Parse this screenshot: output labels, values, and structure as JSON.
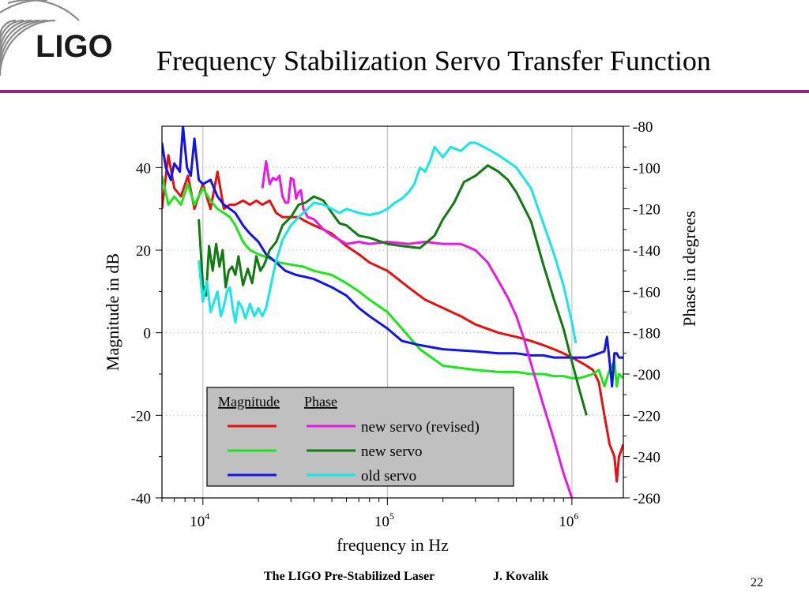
{
  "slide": {
    "title": "Frequency Stabilization Servo Transfer Function",
    "logo_text": "LIGO",
    "footer_text": "The LIGO Pre-Stabilized Laser",
    "footer_author": "J. Kovalik",
    "page_number": "22",
    "accent_color": "#9b1f74"
  },
  "chart_data": {
    "type": "line",
    "title": "",
    "xlabel": "frequency in Hz",
    "ylabel_left": "Magnitude in dB",
    "ylabel_right": "Phase in degrees",
    "x_scale": "log",
    "xlim": [
      6000,
      1900000
    ],
    "ylim_left": [
      -40,
      50
    ],
    "ylim_right": [
      -260,
      -80
    ],
    "x_ticks": [
      {
        "value": 10000,
        "base": "10",
        "exp": "4"
      },
      {
        "value": 100000,
        "base": "10",
        "exp": "5"
      },
      {
        "value": 1000000,
        "base": "10",
        "exp": "6"
      }
    ],
    "y_left_ticks": [
      "40",
      "20",
      "0",
      "-20",
      "-40"
    ],
    "y_right_ticks": [
      "-80",
      "-100",
      "-120",
      "-140",
      "-160",
      "-180",
      "-200",
      "-220",
      "-240",
      "-260"
    ],
    "grid": true,
    "legend": {
      "placement": "bottom-center",
      "header_magnitude": "Magnitude",
      "header_phase": "Phase",
      "entries": [
        "new servo (revised)",
        "new servo",
        "old servo"
      ]
    },
    "series": [
      {
        "name": "new servo (revised)",
        "quantity": "Magnitude",
        "axis": "left",
        "color": "#e61010",
        "x": [
          6000,
          6500,
          7000,
          7600,
          8300,
          9000,
          10000,
          11000,
          12000,
          13000,
          14000,
          15000,
          16500,
          18000,
          19500,
          21000,
          23000,
          25000,
          27000,
          30000,
          33000,
          36000,
          40000,
          45000,
          50000,
          60000,
          70000,
          80000,
          100000,
          130000,
          160000,
          200000,
          250000,
          300000,
          400000,
          500000,
          600000,
          700000,
          800000,
          900000,
          1000000,
          1100000,
          1200000,
          1300000,
          1400000,
          1500000,
          1600000,
          1700000,
          1750000,
          1800000,
          1900000
        ],
        "y": [
          30,
          43,
          35,
          33,
          38,
          30,
          36,
          30,
          39,
          30,
          31,
          31,
          32,
          31,
          32,
          31,
          32,
          29,
          28,
          28,
          28,
          27,
          26,
          25,
          24,
          21,
          19,
          17,
          15,
          11,
          8,
          6,
          4,
          2,
          0,
          -1,
          -2,
          -3,
          -4,
          -5,
          -6,
          -7,
          -8,
          -9,
          -12,
          -20,
          -27,
          -30,
          -36,
          -30,
          -27
        ]
      },
      {
        "name": "new servo",
        "quantity": "Magnitude",
        "axis": "left",
        "color": "#1ee61e",
        "x": [
          6000,
          6500,
          7000,
          7600,
          8300,
          9000,
          10000,
          11000,
          12000,
          13000,
          14000,
          15000,
          16500,
          18000,
          20000,
          23000,
          26000,
          30000,
          35000,
          40000,
          50000,
          60000,
          70000,
          80000,
          100000,
          120000,
          150000,
          200000,
          300000,
          400000,
          500000,
          600000,
          700000,
          800000,
          900000,
          1000000,
          1100000,
          1200000,
          1300000,
          1400000,
          1500000,
          1600000,
          1700000,
          1750000,
          1800000,
          1900000
        ],
        "y": [
          38,
          31,
          33,
          31,
          36,
          31,
          35,
          32,
          30,
          29,
          28,
          26,
          22,
          20,
          19,
          18,
          17,
          16.5,
          16,
          15,
          14,
          12,
          10,
          8,
          5,
          1,
          -4,
          -8,
          -9,
          -9.5,
          -9.5,
          -10,
          -10,
          -10.5,
          -10.5,
          -11,
          -11,
          -10.5,
          -10,
          -9,
          -13,
          -9,
          -7,
          -13,
          -10,
          -11
        ]
      },
      {
        "name": "old servo",
        "quantity": "Magnitude",
        "axis": "left",
        "color": "#1414e6",
        "x": [
          6000,
          6300,
          6700,
          7000,
          7500,
          7800,
          8200,
          8600,
          9000,
          9500,
          10000,
          11000,
          12000,
          13000,
          14000,
          15000,
          16500,
          18000,
          20000,
          22000,
          25000,
          28000,
          32000,
          36000,
          40000,
          50000,
          60000,
          70000,
          80000,
          100000,
          120000,
          150000,
          200000,
          300000,
          400000,
          500000,
          600000,
          700000,
          800000,
          900000,
          1000000,
          1100000,
          1200000,
          1300000,
          1400000,
          1500000,
          1550000,
          1600000,
          1650000,
          1700000,
          1750000,
          1800000,
          1900000
        ],
        "y": [
          46,
          40,
          37,
          41,
          39,
          50,
          40,
          38,
          47,
          37,
          36,
          37,
          33,
          31,
          30,
          29,
          26,
          24,
          22,
          19,
          17,
          15,
          14,
          13.5,
          13,
          11,
          9,
          6,
          4,
          1,
          -2,
          -3,
          -4,
          -4.5,
          -5,
          -5,
          -5.5,
          -5.5,
          -6,
          -6,
          -6,
          -6,
          -6,
          -5.5,
          -5,
          -4.5,
          -1,
          -7,
          -13,
          -5,
          -5,
          -6,
          -6
        ]
      },
      {
        "name": "new servo (revised)",
        "quantity": "Phase",
        "axis": "right",
        "color": "#e619e6",
        "x": [
          21000,
          22000,
          23000,
          24000,
          25000,
          26000,
          27000,
          28000,
          29000,
          30000,
          31000,
          32000,
          33000,
          34000,
          35000,
          37000,
          40000,
          45000,
          50000,
          55000,
          60000,
          70000,
          80000,
          100000,
          130000,
          160000,
          200000,
          250000,
          300000,
          350000,
          400000,
          450000,
          500000,
          550000,
          600000,
          700000,
          800000,
          900000,
          1000000,
          1050000
        ],
        "y": [
          -110,
          -97,
          -108,
          -105,
          -106,
          -104,
          -114,
          -117,
          -117,
          -105,
          -106,
          -115,
          -112,
          -111,
          -120,
          -124,
          -125,
          -130,
          -133,
          -135,
          -137,
          -136,
          -137,
          -136,
          -137,
          -136,
          -137,
          -137,
          -140,
          -146,
          -155,
          -163,
          -172,
          -183,
          -195,
          -215,
          -232,
          -248,
          -260,
          -268
        ]
      },
      {
        "name": "new servo",
        "quantity": "Phase",
        "axis": "right",
        "color": "#117a11",
        "x": [
          9500,
          10000,
          10400,
          10800,
          11300,
          11800,
          12300,
          12800,
          13300,
          13800,
          14400,
          15000,
          15600,
          16500,
          17500,
          18500,
          19500,
          20500,
          21500,
          23000,
          25000,
          27000,
          30000,
          33000,
          36000,
          40000,
          45000,
          50000,
          55000,
          60000,
          70000,
          80000,
          100000,
          120000,
          150000,
          180000,
          200000,
          230000,
          260000,
          300000,
          350000,
          400000,
          450000,
          500000,
          600000,
          700000,
          800000,
          900000,
          1000000,
          1100000,
          1200000
        ],
        "y": [
          -125,
          -157,
          -162,
          -138,
          -150,
          -137,
          -148,
          -140,
          -158,
          -150,
          -148,
          -152,
          -143,
          -157,
          -149,
          -156,
          -143,
          -150,
          -147,
          -140,
          -136,
          -128,
          -124,
          -118,
          -117,
          -114,
          -116,
          -122,
          -127,
          -128,
          -133,
          -134,
          -137,
          -138,
          -139,
          -133,
          -125,
          -117,
          -107,
          -104,
          -99,
          -102,
          -106,
          -112,
          -126,
          -147,
          -164,
          -178,
          -194,
          -208,
          -220
        ]
      },
      {
        "name": "old servo",
        "quantity": "Phase",
        "axis": "right",
        "color": "#19e6e6",
        "x": [
          9500,
          10000,
          10500,
          11000,
          11500,
          12000,
          12500,
          13000,
          13500,
          14000,
          14500,
          15000,
          15600,
          16300,
          17000,
          18000,
          19000,
          20000,
          21000,
          22000,
          23000,
          24000,
          25000,
          27000,
          30000,
          33000,
          36000,
          40000,
          45000,
          50000,
          55000,
          60000,
          70000,
          80000,
          90000,
          100000,
          110000,
          120000,
          130000,
          140000,
          150000,
          160000,
          170000,
          180000,
          200000,
          220000,
          250000,
          280000,
          300000,
          350000,
          400000,
          500000,
          600000,
          700000,
          800000,
          900000,
          1000000,
          1050000
        ],
        "y": [
          -145,
          -165,
          -155,
          -170,
          -165,
          -160,
          -172,
          -167,
          -160,
          -158,
          -168,
          -175,
          -165,
          -168,
          -173,
          -166,
          -172,
          -168,
          -172,
          -168,
          -160,
          -152,
          -145,
          -135,
          -128,
          -124,
          -121,
          -117,
          -118,
          -120,
          -122,
          -120,
          -122,
          -123,
          -122,
          -120,
          -117,
          -115,
          -112,
          -108,
          -100,
          -102,
          -97,
          -90,
          -95,
          -90,
          -92,
          -88,
          -88,
          -91,
          -94,
          -100,
          -110,
          -127,
          -142,
          -157,
          -175,
          -185
        ]
      }
    ]
  }
}
